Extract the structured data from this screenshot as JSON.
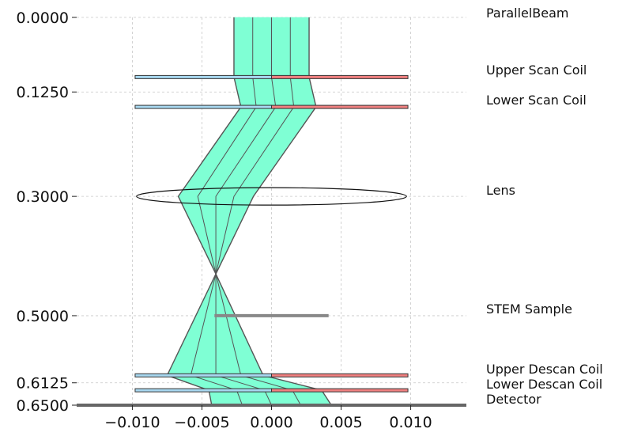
{
  "chart_data": {
    "type": "diagram",
    "x_ticks": [
      "−0.010",
      "−0.005",
      "0.000",
      "0.005",
      "0.010"
    ],
    "x_tick_values": [
      -0.01,
      -0.005,
      0.0,
      0.005,
      0.01
    ],
    "y_ticks": [
      "0.0000",
      "0.1250",
      "0.3000",
      "0.5000",
      "0.6125",
      "0.6500"
    ],
    "y_tick_values": [
      0.0,
      0.125,
      0.3,
      0.5,
      0.6125,
      0.65
    ],
    "xlim": [
      -0.014,
      0.014
    ],
    "ylim": [
      0.0,
      0.65
    ],
    "grid": true,
    "components": [
      {
        "name": "ParallelBeam",
        "z": 0.0
      },
      {
        "name": "Upper Scan Coil",
        "z": 0.1
      },
      {
        "name": "Lower Scan Coil",
        "z": 0.15
      },
      {
        "name": "Lens",
        "z": 0.3
      },
      {
        "name": "STEM Sample",
        "z": 0.5
      },
      {
        "name": "Upper Descan Coil",
        "z": 0.6
      },
      {
        "name": "Lower Descan Coil",
        "z": 0.625
      },
      {
        "name": "Detector",
        "z": 0.65
      }
    ],
    "rays": {
      "z": [
        0.0,
        0.1,
        0.15,
        0.3,
        0.43,
        0.6,
        0.625,
        0.65
      ],
      "x": [
        [
          -0.0027,
          -0.0027,
          -0.0022,
          -0.0067,
          -0.004,
          -0.0075,
          -0.0045,
          -0.0043
        ],
        [
          -0.00135,
          -0.00135,
          -0.0011,
          -0.0053,
          -0.004,
          -0.0058,
          -0.0025,
          -0.0021
        ],
        [
          0.0,
          0.0,
          0.0003,
          -0.004,
          -0.004,
          -0.004,
          -0.0005,
          0.0
        ],
        [
          0.00135,
          0.00135,
          0.0016,
          -0.0027,
          -0.004,
          -0.0022,
          0.0015,
          0.0021
        ],
        [
          0.0027,
          0.0027,
          0.0032,
          -0.0013,
          -0.004,
          -0.0006,
          0.0036,
          0.0043
        ]
      ]
    },
    "colors": {
      "beam_fill": "#7fffd4",
      "beam_edge": "#555555",
      "coil_blue": "#a8d8f0",
      "coil_red": "#f08080",
      "sample": "#888888",
      "detector": "#666666"
    }
  }
}
